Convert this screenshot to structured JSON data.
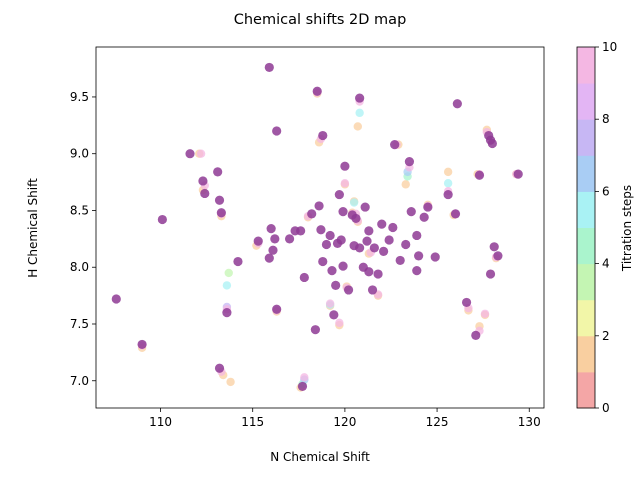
{
  "chart_data": {
    "type": "scatter",
    "title": "Chemical shifts 2D map",
    "xlabel": "N Chemical Shift",
    "ylabel": "H Chemical Shift",
    "xlim": [
      106.5,
      130.8
    ],
    "ylim": [
      6.76,
      9.94
    ],
    "x_ticks": [
      110,
      115,
      120,
      125,
      130
    ],
    "y_ticks": [
      7.0,
      7.5,
      8.0,
      8.5,
      9.0,
      9.5
    ],
    "colorbar": {
      "label": "Titration steps",
      "range": [
        0,
        10
      ],
      "ticks": [
        0,
        2,
        4,
        6,
        8,
        10
      ],
      "colors": [
        "#f4a6a6",
        "#f9cfa0",
        "#f2f6a8",
        "#c4f5b3",
        "#aaf4cd",
        "#a9f2f4",
        "#a9cdf4",
        "#c7b7f4",
        "#e3b5f4",
        "#f4b7e3"
      ]
    },
    "final_step_color": "#8e3a94",
    "grid": false,
    "series": [
      {
        "values": [
          {
            "x": 107.6,
            "y": 7.72
          },
          {
            "x": 109.0,
            "y": 7.32
          },
          {
            "x": 110.1,
            "y": 8.42
          },
          {
            "x": 111.6,
            "y": 9.0
          },
          {
            "x": 112.3,
            "y": 8.76
          },
          {
            "x": 112.4,
            "y": 8.65
          },
          {
            "x": 113.1,
            "y": 8.84
          },
          {
            "x": 113.2,
            "y": 8.59
          },
          {
            "x": 113.3,
            "y": 8.48
          },
          {
            "x": 113.2,
            "y": 7.11
          },
          {
            "x": 113.6,
            "y": 7.6
          },
          {
            "x": 114.2,
            "y": 8.05
          },
          {
            "x": 115.3,
            "y": 8.23
          },
          {
            "x": 115.9,
            "y": 9.76
          },
          {
            "x": 115.9,
            "y": 8.08
          },
          {
            "x": 116.0,
            "y": 8.34
          },
          {
            "x": 116.1,
            "y": 8.15
          },
          {
            "x": 116.2,
            "y": 8.25
          },
          {
            "x": 116.3,
            "y": 9.2
          },
          {
            "x": 116.3,
            "y": 7.63
          },
          {
            "x": 117.0,
            "y": 8.25
          },
          {
            "x": 117.3,
            "y": 8.32
          },
          {
            "x": 117.6,
            "y": 8.32
          },
          {
            "x": 117.7,
            "y": 6.95
          },
          {
            "x": 117.8,
            "y": 7.91
          },
          {
            "x": 118.2,
            "y": 8.47
          },
          {
            "x": 118.4,
            "y": 7.45
          },
          {
            "x": 118.5,
            "y": 9.55
          },
          {
            "x": 118.6,
            "y": 8.54
          },
          {
            "x": 118.7,
            "y": 8.33
          },
          {
            "x": 118.8,
            "y": 9.16
          },
          {
            "x": 118.8,
            "y": 8.05
          },
          {
            "x": 119.0,
            "y": 8.2
          },
          {
            "x": 119.2,
            "y": 8.28
          },
          {
            "x": 119.3,
            "y": 7.97
          },
          {
            "x": 119.4,
            "y": 7.58
          },
          {
            "x": 119.5,
            "y": 7.84
          },
          {
            "x": 119.6,
            "y": 8.21
          },
          {
            "x": 119.7,
            "y": 8.64
          },
          {
            "x": 119.8,
            "y": 8.24
          },
          {
            "x": 119.9,
            "y": 8.01
          },
          {
            "x": 119.9,
            "y": 8.49
          },
          {
            "x": 120.0,
            "y": 8.89
          },
          {
            "x": 120.2,
            "y": 7.8
          },
          {
            "x": 120.4,
            "y": 8.46
          },
          {
            "x": 120.5,
            "y": 8.19
          },
          {
            "x": 120.6,
            "y": 8.43
          },
          {
            "x": 120.8,
            "y": 9.49
          },
          {
            "x": 120.8,
            "y": 8.17
          },
          {
            "x": 121.0,
            "y": 8.0
          },
          {
            "x": 121.1,
            "y": 8.53
          },
          {
            "x": 121.2,
            "y": 8.23
          },
          {
            "x": 121.3,
            "y": 8.32
          },
          {
            "x": 121.3,
            "y": 7.96
          },
          {
            "x": 121.5,
            "y": 7.8
          },
          {
            "x": 121.6,
            "y": 8.17
          },
          {
            "x": 121.8,
            "y": 7.94
          },
          {
            "x": 122.0,
            "y": 8.38
          },
          {
            "x": 122.1,
            "y": 8.14
          },
          {
            "x": 122.4,
            "y": 8.24
          },
          {
            "x": 122.6,
            "y": 8.35
          },
          {
            "x": 122.7,
            "y": 9.08
          },
          {
            "x": 123.0,
            "y": 8.06
          },
          {
            "x": 123.3,
            "y": 8.2
          },
          {
            "x": 123.5,
            "y": 8.93
          },
          {
            "x": 123.6,
            "y": 8.49
          },
          {
            "x": 123.9,
            "y": 8.28
          },
          {
            "x": 123.9,
            "y": 7.97
          },
          {
            "x": 124.0,
            "y": 8.1
          },
          {
            "x": 124.3,
            "y": 8.44
          },
          {
            "x": 124.5,
            "y": 8.53
          },
          {
            "x": 124.9,
            "y": 8.09
          },
          {
            "x": 125.6,
            "y": 8.64
          },
          {
            "x": 126.0,
            "y": 8.47
          },
          {
            "x": 126.1,
            "y": 9.44
          },
          {
            "x": 126.6,
            "y": 7.69
          },
          {
            "x": 127.1,
            "y": 7.4
          },
          {
            "x": 127.3,
            "y": 8.81
          },
          {
            "x": 127.8,
            "y": 9.16
          },
          {
            "x": 127.9,
            "y": 9.12
          },
          {
            "x": 127.9,
            "y": 7.94
          },
          {
            "x": 128.0,
            "y": 9.09
          },
          {
            "x": 128.1,
            "y": 8.18
          },
          {
            "x": 128.3,
            "y": 8.1
          },
          {
            "x": 129.4,
            "y": 8.82
          }
        ]
      }
    ],
    "trails": [
      {
        "x": [
          109.0,
          109.0
        ],
        "y": [
          7.29,
          7.31
        ]
      },
      {
        "x": [
          112.1,
          112.2
        ],
        "y": [
          9.0,
          9.0
        ]
      },
      {
        "x": [
          112.3,
          112.4
        ],
        "y": [
          8.68,
          8.72
        ]
      },
      {
        "x": [
          113.3,
          113.3
        ],
        "y": [
          8.45,
          8.47
        ]
      },
      {
        "x": [
          113.8,
          113.7,
          113.6,
          113.6,
          113.6
        ],
        "y": [
          6.99,
          7.95,
          7.84,
          7.65,
          7.63
        ]
      },
      {
        "x": [
          113.4,
          113.3
        ],
        "y": [
          7.05,
          7.08
        ]
      },
      {
        "x": [
          115.2,
          115.3
        ],
        "y": [
          8.19,
          8.21
        ]
      },
      {
        "x": [
          116.3,
          116.3
        ],
        "y": [
          7.61,
          7.62
        ]
      },
      {
        "x": [
          117.6,
          117.7,
          117.8,
          117.8
        ],
        "y": [
          6.94,
          6.97,
          7.01,
          7.03
        ]
      },
      {
        "x": [
          118.0,
          118.0
        ],
        "y": [
          8.44,
          8.45
        ]
      },
      {
        "x": [
          118.5,
          118.5
        ],
        "y": [
          9.53,
          9.54
        ]
      },
      {
        "x": [
          118.6,
          118.7
        ],
        "y": [
          9.1,
          9.13
        ]
      },
      {
        "x": [
          119.2,
          119.2,
          119.2
        ],
        "y": [
          7.66,
          7.67,
          7.68
        ]
      },
      {
        "x": [
          119.7,
          119.7
        ],
        "y": [
          7.49,
          7.51
        ]
      },
      {
        "x": [
          120.0,
          120.0
        ],
        "y": [
          8.73,
          8.74
        ]
      },
      {
        "x": [
          120.1,
          120.1
        ],
        "y": [
          7.83,
          7.82
        ]
      },
      {
        "x": [
          120.4,
          120.4
        ],
        "y": [
          8.48,
          8.47
        ]
      },
      {
        "x": [
          120.5,
          120.5,
          120.6
        ],
        "y": [
          8.58,
          8.57,
          8.47
        ]
      },
      {
        "x": [
          120.7,
          120.8,
          120.8
        ],
        "y": [
          9.24,
          9.36,
          9.46
        ]
      },
      {
        "x": [
          120.7,
          120.7
        ],
        "y": [
          8.4,
          8.41
        ]
      },
      {
        "x": [
          121.3,
          121.4
        ],
        "y": [
          8.12,
          8.13
        ]
      },
      {
        "x": [
          121.8,
          121.8
        ],
        "y": [
          7.75,
          7.76
        ]
      },
      {
        "x": [
          122.9,
          122.8
        ],
        "y": [
          9.08,
          9.08
        ]
      },
      {
        "x": [
          123.3,
          123.4,
          123.4,
          123.5
        ],
        "y": [
          8.73,
          8.8,
          8.84,
          8.88
        ]
      },
      {
        "x": [
          124.5,
          124.5
        ],
        "y": [
          8.55,
          8.54
        ]
      },
      {
        "x": [
          125.6,
          125.6,
          125.6
        ],
        "y": [
          8.84,
          8.74,
          8.67
        ]
      },
      {
        "x": [
          125.9,
          126.0
        ],
        "y": [
          8.46,
          8.47
        ]
      },
      {
        "x": [
          126.7,
          126.7
        ],
        "y": [
          7.62,
          7.64
        ]
      },
      {
        "x": [
          127.3,
          127.3
        ],
        "y": [
          7.48,
          7.44
        ]
      },
      {
        "x": [
          127.6,
          127.6
        ],
        "y": [
          7.58,
          7.59
        ]
      },
      {
        "x": [
          127.2,
          127.3
        ],
        "y": [
          8.82,
          8.82
        ]
      },
      {
        "x": [
          127.7,
          127.7
        ],
        "y": [
          9.21,
          9.19
        ]
      },
      {
        "x": [
          128.2,
          128.2
        ],
        "y": [
          8.08,
          8.09
        ]
      },
      {
        "x": [
          129.3,
          129.3
        ],
        "y": [
          8.82,
          8.82
        ]
      }
    ]
  }
}
